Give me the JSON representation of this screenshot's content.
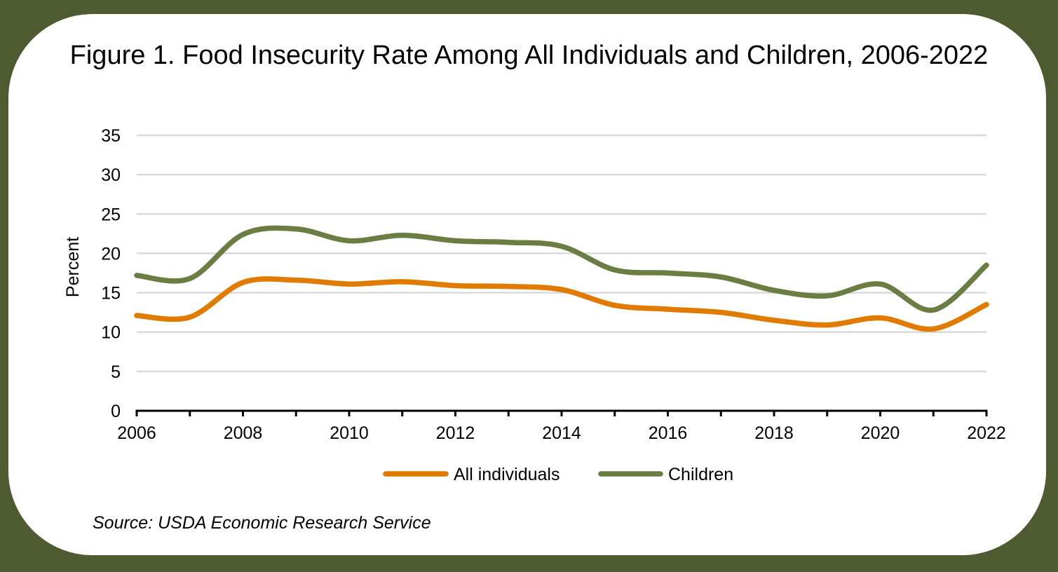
{
  "page": {
    "background_color": "#4e5b31",
    "card_color": "#ffffff"
  },
  "source": "Source: USDA Economic Research Service",
  "chart_data": {
    "type": "line",
    "title": "Figure 1. Food Insecurity Rate Among All Individuals and Children, 2006-2022",
    "xlabel": "",
    "ylabel": "Percent",
    "x": [
      2006,
      2007,
      2008,
      2009,
      2010,
      2011,
      2012,
      2013,
      2014,
      2015,
      2016,
      2017,
      2018,
      2019,
      2020,
      2021,
      2022
    ],
    "xlim": [
      2006,
      2022
    ],
    "xticks": [
      2006,
      2008,
      2010,
      2012,
      2014,
      2016,
      2018,
      2020,
      2022
    ],
    "xtick_labels": [
      "2006",
      "2008",
      "2010",
      "2012",
      "2014",
      "2016",
      "2018",
      "2020",
      "2022"
    ],
    "ylim": [
      0,
      35
    ],
    "yticks": [
      0,
      5,
      10,
      15,
      20,
      25,
      30,
      35
    ],
    "ytick_labels": [
      "0",
      "5",
      "10",
      "15",
      "20",
      "25",
      "30",
      "35"
    ],
    "grid": "horizontal",
    "smooth": true,
    "legend": {
      "placement": "bottom-center"
    },
    "series": [
      {
        "name": "All individuals",
        "color": "#e07b00",
        "values": [
          12.1,
          11.9,
          16.3,
          16.6,
          16.1,
          16.4,
          15.9,
          15.8,
          15.4,
          13.4,
          12.9,
          12.5,
          11.5,
          10.9,
          11.8,
          10.4,
          13.5
        ]
      },
      {
        "name": "Children",
        "color": "#6a7d43",
        "values": [
          17.2,
          16.8,
          22.4,
          23.1,
          21.6,
          22.3,
          21.6,
          21.4,
          20.9,
          17.9,
          17.5,
          17.0,
          15.3,
          14.6,
          16.1,
          12.8,
          18.5
        ]
      }
    ]
  }
}
